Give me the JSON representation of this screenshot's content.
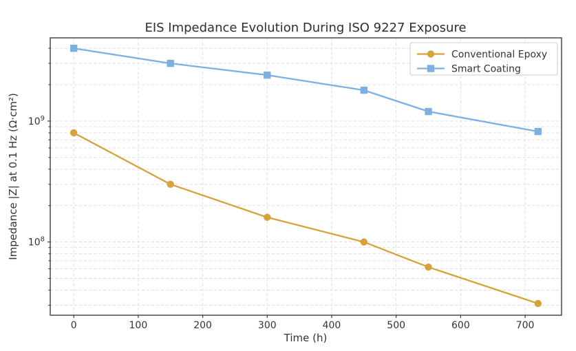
{
  "figure_title": "EIS Impedance Evolution During ISO 9227 Exposure",
  "chart_data": {
    "type": "line",
    "title": "EIS Impedance Evolution During ISO 9227 Exposure",
    "xlabel": "Time (h)",
    "ylabel": "Impedance |Z| at 0.1 Hz (Ω·cm²)",
    "y_scale": "log",
    "grid": true,
    "legend_position": "upper right",
    "x": [
      0,
      150,
      300,
      450,
      550,
      720
    ],
    "series": [
      {
        "name": "Conventional Epoxy",
        "color": "#D5A23C",
        "marker": "circle",
        "values": [
          800000000,
          300000000,
          160000000,
          100000000,
          62000000,
          31000000
        ]
      },
      {
        "name": "Smart Coating",
        "color": "#7DB0E0",
        "marker": "square",
        "values": [
          4000000000,
          3000000000,
          2400000000,
          1800000000,
          1200000000,
          820000000
        ]
      }
    ],
    "x_ticks": [
      0,
      100,
      200,
      300,
      400,
      500,
      600,
      700
    ],
    "y_ticks": [
      100000000,
      1000000000
    ],
    "y_tick_labels": [
      "10⁸",
      "10⁹"
    ],
    "xlim": [
      -36.5,
      756.5
    ],
    "ylim": [
      24800000,
      4880000000
    ]
  }
}
